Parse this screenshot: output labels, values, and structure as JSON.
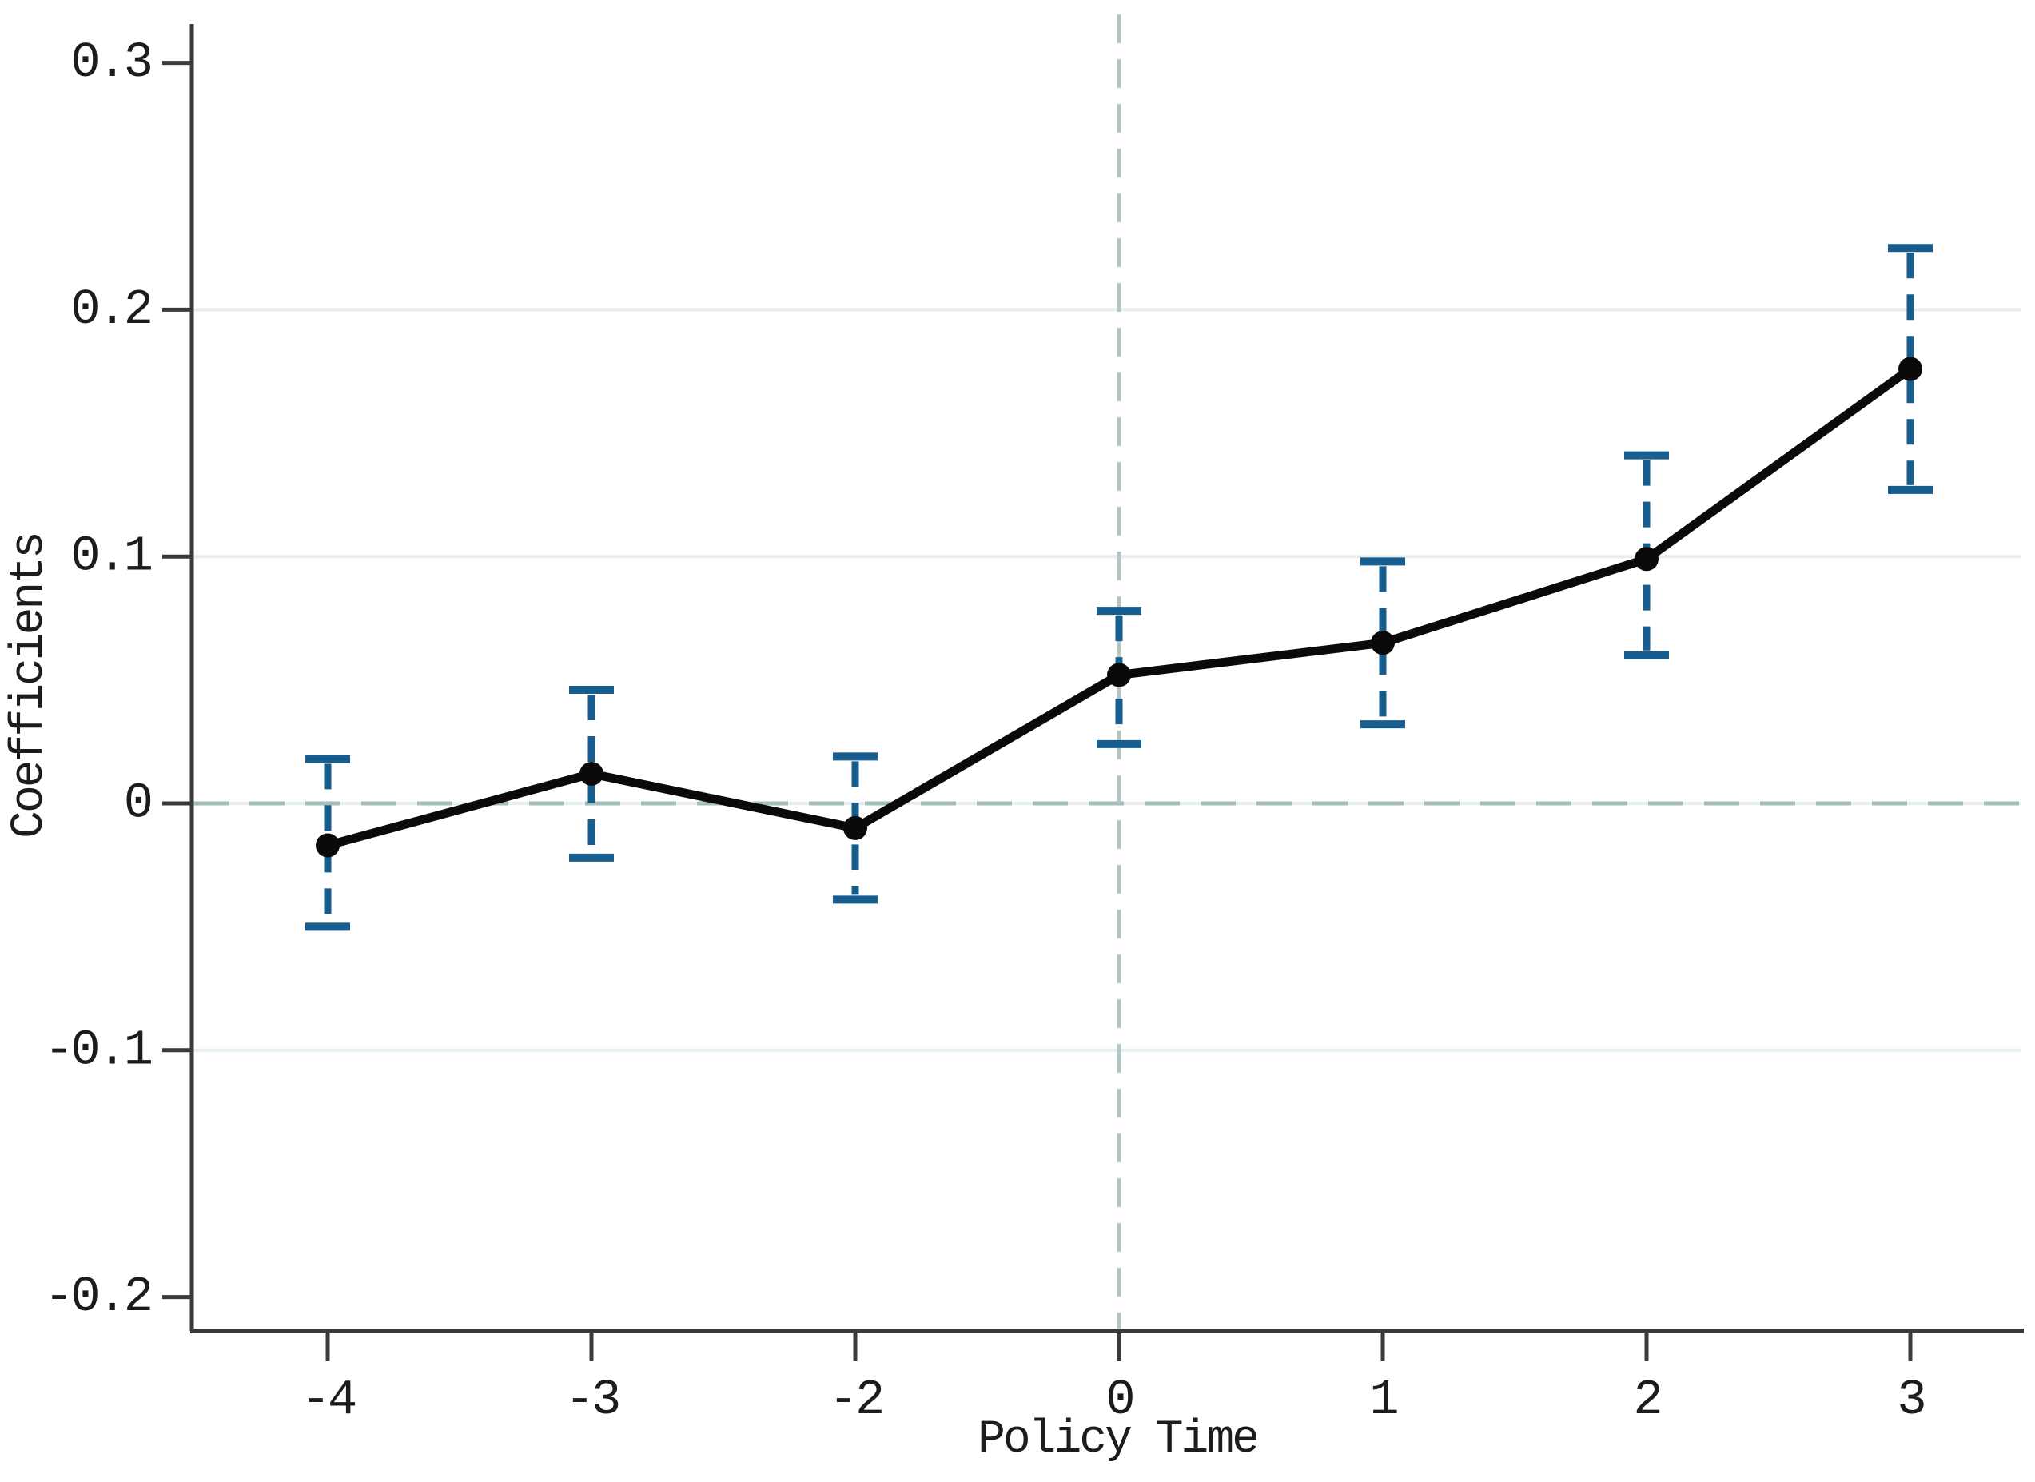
{
  "figure": {
    "background": "#ffffff",
    "kind": "event-study coefficient plot"
  },
  "chart_data": {
    "type": "line",
    "title": "",
    "xlabel": "Policy Time",
    "ylabel": "Coefficients",
    "categories": [
      "-4",
      "-3",
      "-2",
      "0",
      "1",
      "2",
      "3"
    ],
    "series": [
      {
        "name": "coefficients",
        "values": [
          -0.017,
          0.012,
          -0.01,
          0.052,
          0.065,
          0.099,
          0.176
        ]
      }
    ],
    "ci_lower": [
      -0.05,
      -0.022,
      -0.039,
      0.024,
      0.032,
      0.06,
      0.127
    ],
    "ci_upper": [
      0.018,
      0.046,
      0.019,
      0.078,
      0.098,
      0.141,
      0.225
    ],
    "y_ticks": [
      {
        "label": "0.3",
        "value": 0.3
      },
      {
        "label": "0.2",
        "value": 0.2
      },
      {
        "label": "0.1",
        "value": 0.1
      },
      {
        "label": "0",
        "value": 0.0
      },
      {
        "label": "-0.1",
        "value": -0.1
      },
      {
        "label": "-0.2",
        "value": -0.2
      }
    ],
    "ylim": [
      -0.23,
      0.316
    ],
    "grid_values": [
      0.2,
      0.1,
      0.0,
      -0.1
    ],
    "grid_on": true,
    "legend": "none",
    "reference_lines": {
      "horizontal_at_value": 0.0,
      "vertical_at_category": "0"
    },
    "colors": {
      "line": "#0a0a0a",
      "marker": "#0a0a0a",
      "error_bar": "#175d8d",
      "grid": "#e7eef2",
      "ref_horizontal": "#a5bdbb",
      "ref_vertical": "#b3c6c4",
      "axis": "#3a3a3a",
      "text": "#1c1c1c"
    }
  }
}
